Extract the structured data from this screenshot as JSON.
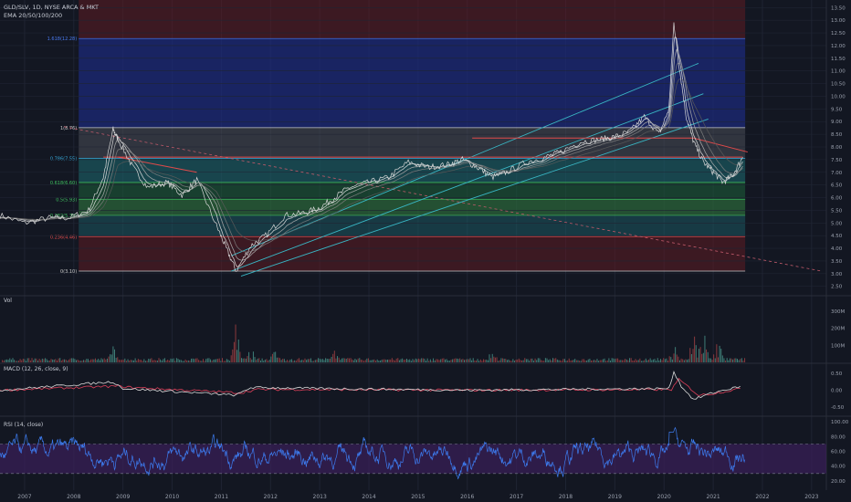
{
  "header": {
    "symbol_line": "GLD/SLV, 1D, NYSE ARCA & MKT",
    "indicator_line": "EMA 20/50/100/200"
  },
  "colors": {
    "background": "#131722",
    "grid": "#1f2433",
    "axis_text": "#9aa0ad",
    "price": "#d8d8d8",
    "ema": [
      "#e8e8e8",
      "#b0b0b0",
      "#808080",
      "#5a5a5a"
    ],
    "fib_red": "#5e1c22",
    "fib_blue": "#1c2a78",
    "fib_gray": "#4a4e58",
    "fib_teal": "#1b5d66",
    "fib_green": "#1d5a38",
    "fib_green2": "#2c6a3a",
    "channel": "#39b6c4",
    "trend_red": "#e04a4a",
    "vol_up": "#3f7f78",
    "vol_down": "#8c3a3e",
    "macd": "#d8d8d8",
    "signal": "#e0405a",
    "rsi": "#3d7cf0",
    "rsi_band": "#3a1f5a"
  },
  "chart_data": [
    {
      "type": "line",
      "panel": "price",
      "title": "GLD/SLV, 1D, NYSE ARCA & MKT",
      "ylim": [
        2.2,
        13.8
      ],
      "xlim": [
        2006.5,
        2023.3
      ],
      "y_ticks": [
        "13.50",
        "13.00",
        "12.50",
        "12.00",
        "11.50",
        "11.00",
        "10.50",
        "10.00",
        "9.50",
        "9.00",
        "8.50",
        "8.00",
        "7.50",
        "7.00",
        "6.50",
        "6.00",
        "5.50",
        "5.00",
        "4.50",
        "4.00",
        "3.50",
        "3.00",
        "2.50"
      ],
      "x_ticks": [
        "2007",
        "2008",
        "2009",
        "2010",
        "2011",
        "2012",
        "2013",
        "2014",
        "2015",
        "2016",
        "2017",
        "2018",
        "2019",
        "2020",
        "2021",
        "2022",
        "2023"
      ],
      "series": [
        {
          "values_x": [
            2006.5,
            2007.0,
            2007.5,
            2007.9,
            2008.3,
            2008.6,
            2008.8,
            2008.9,
            2009.2,
            2009.5,
            2009.9,
            2010.2,
            2010.5,
            2010.9,
            2011.1,
            2011.3,
            2011.6,
            2011.9,
            2012.3,
            2012.7,
            2013.0,
            2013.3,
            2013.6,
            2014.0,
            2014.4,
            2014.8,
            2015.2,
            2015.6,
            2015.9,
            2016.2,
            2016.5,
            2016.8,
            2017.2,
            2017.6,
            2017.9,
            2018.3,
            2018.7,
            2019.0,
            2019.3,
            2019.6,
            2019.9,
            2020.1,
            2020.2,
            2020.3,
            2020.45,
            2020.6,
            2020.8,
            2021.0,
            2021.2,
            2021.4,
            2021.6
          ],
          "values": [
            5.3,
            5.0,
            5.2,
            5.2,
            5.5,
            6.8,
            8.7,
            8.3,
            7.2,
            6.4,
            6.6,
            6.1,
            6.7,
            4.9,
            4.0,
            3.1,
            4.1,
            4.5,
            5.3,
            5.4,
            5.6,
            6.0,
            6.4,
            6.6,
            6.8,
            7.4,
            7.2,
            7.3,
            7.5,
            7.2,
            6.8,
            7.0,
            7.4,
            7.6,
            7.8,
            8.2,
            8.3,
            8.4,
            8.6,
            9.2,
            8.5,
            9.5,
            12.9,
            11.3,
            9.2,
            8.2,
            7.4,
            7.0,
            6.6,
            6.9,
            7.6
          ]
        }
      ],
      "ema_labels": [
        "EMA 20",
        "EMA 50",
        "EMA 100",
        "EMA 200"
      ],
      "fibonacci": [
        {
          "label": "0(3.10)",
          "value": 3.1
        },
        {
          "label": "0.236(4.46)",
          "value": 4.46
        },
        {
          "label": "0.382(5.30)",
          "value": 5.3
        },
        {
          "label": "0.5(5.93)",
          "value": 5.93
        },
        {
          "label": "0.618(6.60)",
          "value": 6.6
        },
        {
          "label": "0.786(7.55)",
          "value": 7.55
        },
        {
          "label": "1(8.76)",
          "value": 8.76
        },
        {
          "label": "1.618(12.28)",
          "value": 12.28
        }
      ],
      "channel_lines": [
        {
          "x": [
            2011.2,
            2020.7
          ],
          "y": [
            3.7,
            11.3
          ]
        },
        {
          "x": [
            2011.2,
            2020.8
          ],
          "y": [
            3.1,
            10.1
          ]
        },
        {
          "x": [
            2011.4,
            2020.9
          ],
          "y": [
            2.9,
            9.1
          ]
        }
      ],
      "trend_lines": [
        {
          "x": [
            2008.9,
            2010.5
          ],
          "y": [
            7.6,
            7.0
          ]
        },
        {
          "x": [
            2008.6,
            2021.6
          ],
          "y": [
            7.6,
            7.6
          ]
        },
        {
          "x": [
            2016.1,
            2020.6
          ],
          "y": [
            8.35,
            8.35
          ]
        },
        {
          "x": [
            2020.6,
            2021.7
          ],
          "y": [
            8.35,
            7.8
          ]
        }
      ],
      "dashed_line": {
        "x": [
          2007.8,
          2023.2
        ],
        "y": [
          8.8,
          3.1
        ]
      }
    },
    {
      "type": "bar",
      "panel": "volume",
      "title": "Vol",
      "y_ticks": [
        "300M",
        "200M",
        "100M"
      ],
      "ylim": [
        0,
        380
      ],
      "peaks": [
        {
          "x": 2008.8,
          "value": 90
        },
        {
          "x": 2011.3,
          "value": 240
        },
        {
          "x": 2011.6,
          "value": 110
        },
        {
          "x": 2012.1,
          "value": 70
        },
        {
          "x": 2013.3,
          "value": 90
        },
        {
          "x": 2016.5,
          "value": 60
        },
        {
          "x": 2020.2,
          "value": 120
        },
        {
          "x": 2020.6,
          "value": 160
        },
        {
          "x": 2020.8,
          "value": 230
        },
        {
          "x": 2021.1,
          "value": 140
        }
      ]
    },
    {
      "type": "line",
      "panel": "macd",
      "title": "MACD (12, 26, close, 9)",
      "y_ticks": [
        "0.50",
        "0.00",
        "-0.50"
      ],
      "ylim": [
        -0.75,
        0.75
      ],
      "series": [
        {
          "name": "MACD",
          "values_x": [
            2006.5,
            2008.8,
            2009.0,
            2011.3,
            2011.6,
            2013.0,
            2016.0,
            2020.1,
            2020.2,
            2020.35,
            2020.6,
            2020.9,
            2021.2,
            2021.6
          ],
          "values": [
            0.0,
            0.25,
            0.05,
            -0.15,
            0.08,
            0.05,
            0.0,
            0.05,
            0.55,
            0.12,
            -0.28,
            -0.12,
            0.0,
            0.12
          ]
        },
        {
          "name": "Signal",
          "values_x": [
            2006.5,
            2008.9,
            2009.2,
            2011.4,
            2011.7,
            2013.0,
            2016.0,
            2020.15,
            2020.3,
            2020.45,
            2020.7,
            2021.0,
            2021.3,
            2021.6
          ],
          "values": [
            0.0,
            0.12,
            0.08,
            -0.08,
            0.02,
            0.02,
            0.0,
            0.02,
            0.32,
            0.15,
            -0.15,
            -0.1,
            -0.02,
            0.06
          ]
        }
      ]
    },
    {
      "type": "line",
      "panel": "rsi",
      "title": "RSI (14, close)",
      "y_ticks": [
        "100.00",
        "80.00",
        "60.00",
        "40.00",
        "20.00"
      ],
      "ylim": [
        10,
        105
      ],
      "upper_band": 70,
      "lower_band": 30,
      "range": "oscillates roughly 25-85, peak ~88 in 2020"
    }
  ]
}
